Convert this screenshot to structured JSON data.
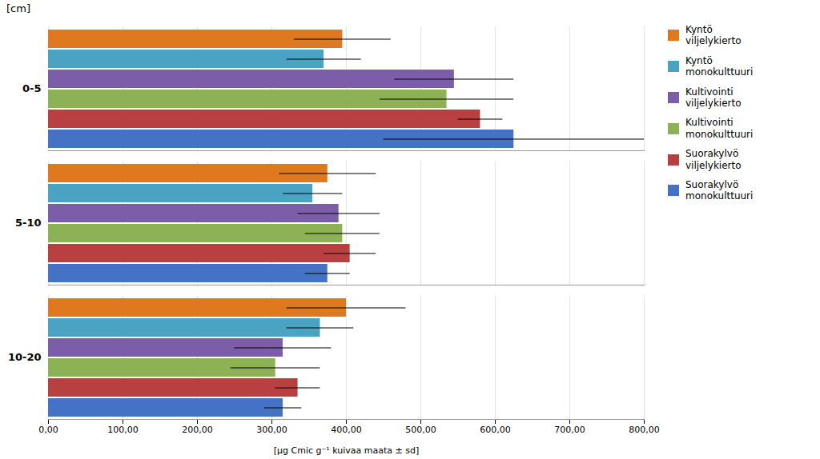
{
  "chart_data": {
    "type": "bar",
    "orientation": "horizontal",
    "xlabel": "[μg Cmic g⁻¹ kuivaa maata ± sd]",
    "ylabel": "[cm]",
    "categories": [
      "0-5",
      "5-10",
      "10-20"
    ],
    "series": [
      {
        "name": "Kyntö\nviljelykierto",
        "color": "#E07820",
        "values": [
          395,
          375,
          400
        ],
        "errors": [
          65,
          65,
          80
        ]
      },
      {
        "name": "Kyntö\nmonokulttuuri",
        "color": "#4BA3C3",
        "values": [
          370,
          355,
          365
        ],
        "errors": [
          50,
          40,
          45
        ]
      },
      {
        "name": "Kultivointi\nviljelykierto",
        "color": "#7B5EA7",
        "values": [
          545,
          390,
          315
        ],
        "errors": [
          80,
          55,
          65
        ]
      },
      {
        "name": "Kultivointi\nmonokulttuuri",
        "color": "#8DB255",
        "values": [
          535,
          395,
          305
        ],
        "errors": [
          90,
          50,
          60
        ]
      },
      {
        "name": "Suorakylvö\nviljelykierto",
        "color": "#B84040",
        "values": [
          580,
          405,
          335
        ],
        "errors": [
          30,
          35,
          30
        ]
      },
      {
        "name": "Suorakylvö\nmonokulttuuri",
        "color": "#4472C4",
        "values": [
          625,
          375,
          315
        ],
        "errors": [
          175,
          30,
          25
        ]
      }
    ],
    "xlim": [
      0,
      800
    ],
    "xticks": [
      {
        "value": 0,
        "label": "0,00"
      },
      {
        "value": 100,
        "label": "100,00"
      },
      {
        "value": 200,
        "label": "200,00"
      },
      {
        "value": 300,
        "label": "300,00"
      },
      {
        "value": 400,
        "label": "400,00"
      },
      {
        "value": 500,
        "label": "500,00"
      },
      {
        "value": 600,
        "label": "600,00"
      },
      {
        "value": 700,
        "label": "700,00"
      },
      {
        "value": 800,
        "label": "800,00"
      }
    ],
    "grid": true,
    "legend": "right"
  }
}
